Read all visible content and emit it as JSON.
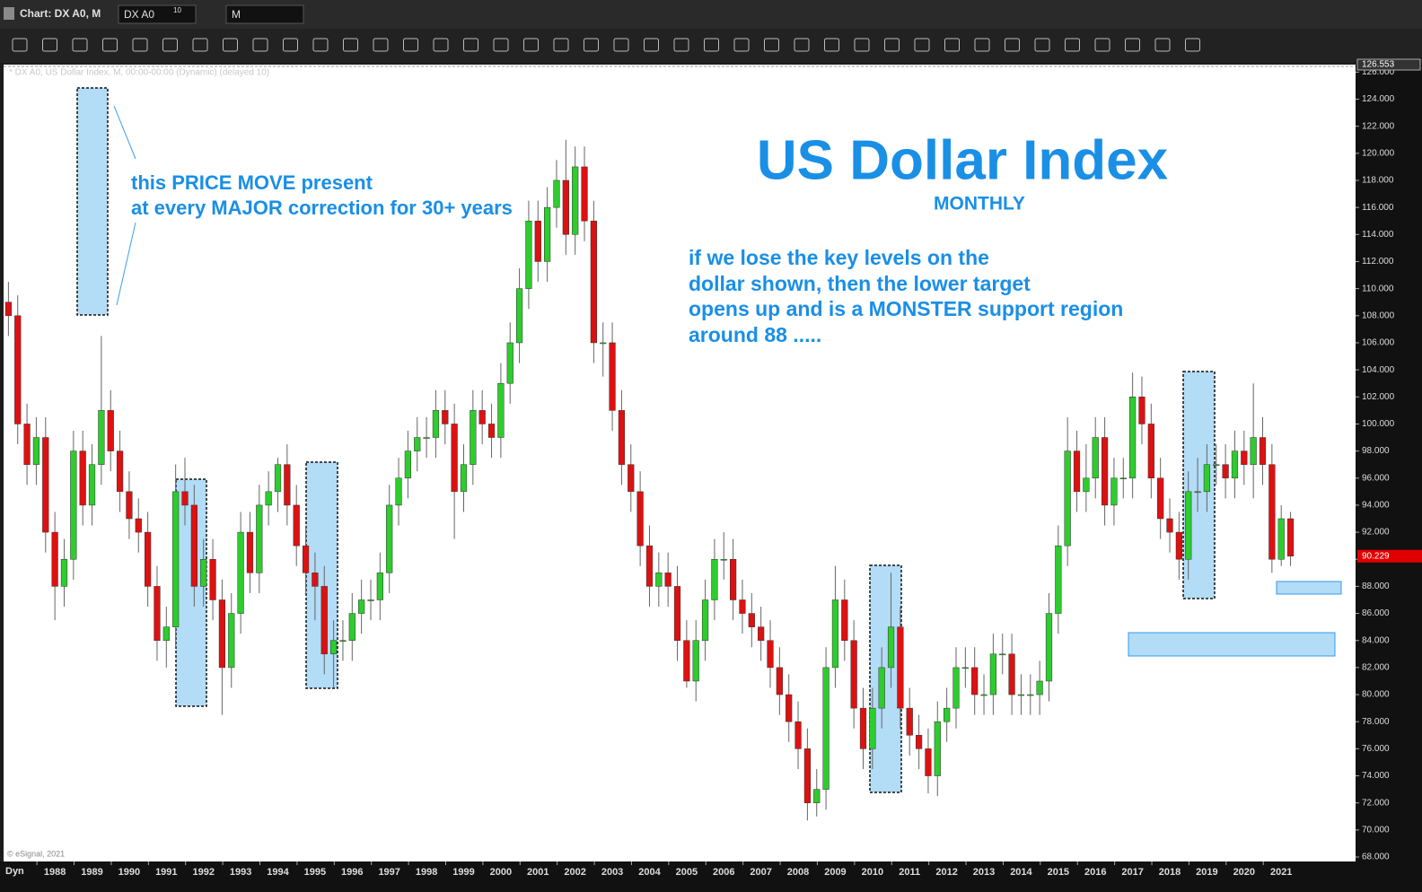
{
  "window": {
    "chart_label": "Chart: DX A0, M",
    "symbol": "DX A0",
    "symbol_sup": "10",
    "interval": "M",
    "corner": "Dyn",
    "legend_line": "* DX A0, US Dollar Index, M, 00:00-00:00 (Dynamic) (delayed 10)",
    "copyright": "© eSignal, 2021"
  },
  "chart_data": {
    "type": "candlestick",
    "title": "US Dollar Index",
    "subtitle": "MONTHLY",
    "annotations": [
      "this PRICE MOVE present",
      "at every MAJOR correction for 30+ years",
      "if we lose the key levels on the",
      "dollar shown, then the lower target",
      "opens up and is a MONSTER support region",
      "around 88 ....."
    ],
    "up_color": "#2ecc2e",
    "down_color": "#dd1111",
    "x": [
      1986.75,
      1987,
      1987.25,
      1987.5,
      1987.75,
      1988,
      1988.25,
      1988.5,
      1988.75,
      1989,
      1989.25,
      1989.5,
      1989.75,
      1990,
      1990.25,
      1990.5,
      1990.75,
      1991,
      1991.25,
      1991.5,
      1991.75,
      1992,
      1992.25,
      1992.5,
      1992.75,
      1993,
      1993.25,
      1993.5,
      1993.75,
      1994,
      1994.25,
      1994.5,
      1994.75,
      1995,
      1995.25,
      1995.5,
      1995.75,
      1996,
      1996.25,
      1996.5,
      1996.75,
      1997,
      1997.25,
      1997.5,
      1997.75,
      1998,
      1998.25,
      1998.5,
      1998.75,
      1999,
      1999.25,
      1999.5,
      1999.75,
      2000,
      2000.25,
      2000.5,
      2000.75,
      2001,
      2001.25,
      2001.5,
      2001.75,
      2002,
      2002.25,
      2002.5,
      2002.75,
      2003,
      2003.25,
      2003.5,
      2003.75,
      2004,
      2004.25,
      2004.5,
      2004.75,
      2005,
      2005.25,
      2005.5,
      2005.75,
      2006,
      2006.25,
      2006.5,
      2006.75,
      2007,
      2007.25,
      2007.5,
      2007.75,
      2008,
      2008.25,
      2008.5,
      2008.75,
      2009,
      2009.25,
      2009.5,
      2009.75,
      2010,
      2010.25,
      2010.5,
      2010.75,
      2011,
      2011.25,
      2011.5,
      2011.75,
      2012,
      2012.25,
      2012.5,
      2012.75,
      2013,
      2013.25,
      2013.5,
      2013.75,
      2014,
      2014.25,
      2014.5,
      2014.75,
      2015,
      2015.25,
      2015.5,
      2015.75,
      2016,
      2016.25,
      2016.5,
      2016.75,
      2017,
      2017.25,
      2017.5,
      2017.75,
      2018,
      2018.25,
      2018.5,
      2018.75,
      2019,
      2019.25,
      2019.5,
      2019.75,
      2020,
      2020.25,
      2020.5,
      2020.75,
      2021,
      2021.25
    ],
    "open": [
      109,
      108,
      100,
      97,
      99,
      92,
      88,
      90,
      98,
      94,
      97,
      101,
      98,
      95,
      93,
      92,
      88,
      84,
      85,
      95,
      94,
      88,
      90,
      87,
      82,
      86,
      92,
      89,
      94,
      95,
      97,
      94,
      91,
      89,
      88,
      83,
      84,
      84,
      86,
      87,
      87,
      89,
      94,
      96,
      98,
      99,
      99,
      101,
      100,
      95,
      97,
      101,
      100,
      99,
      103,
      106,
      110,
      115,
      112,
      116,
      118,
      114,
      119,
      115,
      106,
      106,
      101,
      97,
      95,
      91,
      88,
      89,
      88,
      84,
      81,
      84,
      87,
      90,
      90,
      87,
      86,
      85,
      84,
      82,
      80,
      78,
      76,
      72,
      73,
      82,
      87,
      84,
      79,
      76,
      79,
      82,
      85,
      79,
      77,
      76,
      74,
      78,
      79,
      82,
      82,
      80,
      80,
      83,
      83,
      80,
      80,
      80,
      81,
      86,
      91,
      98,
      95,
      96,
      99,
      94,
      96,
      96,
      102,
      100,
      96,
      93,
      92,
      90,
      95,
      95,
      97,
      97,
      96,
      98,
      97,
      99,
      97,
      90,
      93
    ],
    "high": [
      110.5,
      109.5,
      101.5,
      100.5,
      100.5,
      93.5,
      91.5,
      99.5,
      99.5,
      98.5,
      106.5,
      102.5,
      99.5,
      96.5,
      94.5,
      93.5,
      89.5,
      86.5,
      97,
      97.5,
      95.5,
      91.5,
      91.5,
      88.5,
      87.5,
      93.5,
      93.5,
      95.5,
      96.5,
      97.5,
      98.5,
      95.5,
      92.5,
      90.5,
      89.5,
      85.5,
      85.5,
      87.5,
      88.5,
      88.5,
      90.5,
      95.5,
      97.5,
      99.5,
      100.5,
      100.5,
      102.5,
      102.5,
      101.5,
      98.5,
      102.5,
      102.5,
      101.5,
      104.5,
      107.5,
      111.5,
      116.5,
      116.5,
      117.5,
      119.5,
      121,
      120.5,
      120.5,
      116.5,
      107.5,
      107.5,
      102.5,
      98.5,
      96.5,
      92.5,
      90.5,
      90.5,
      89.5,
      85.5,
      85.5,
      88.5,
      91.5,
      92,
      91.5,
      88.5,
      87.5,
      86.5,
      85.5,
      83.5,
      81.5,
      79.5,
      77.5,
      74.5,
      83.5,
      89.5,
      88.5,
      85.5,
      80.5,
      80.5,
      83.5,
      89,
      86.5,
      80.5,
      78.5,
      77.5,
      79.5,
      80.5,
      83.5,
      83.5,
      83.5,
      81.5,
      84.5,
      84.5,
      84.5,
      81.5,
      81.5,
      82.5,
      87.5,
      92.5,
      100.5,
      99.5,
      98.5,
      100.5,
      100.5,
      97.5,
      97.5,
      103.8,
      103.5,
      101.5,
      97.5,
      94.5,
      93.5,
      96.5,
      97.5,
      98.5,
      98.5,
      98.5,
      99.5,
      99.5,
      103,
      100.5,
      98.5,
      94,
      93.5
    ],
    "low": [
      106.5,
      98.5,
      95.5,
      95.5,
      90.5,
      85.5,
      86.5,
      88.5,
      92.5,
      92.5,
      95.5,
      96.5,
      93.5,
      91.5,
      90.5,
      86.5,
      82.5,
      82,
      83.5,
      92.5,
      86.5,
      86.5,
      85.5,
      78.5,
      80.5,
      84.5,
      87.5,
      87.5,
      92.5,
      93.5,
      92.5,
      89.5,
      87.5,
      85.5,
      81.5,
      80.5,
      82.5,
      82.5,
      84.5,
      85.5,
      85.5,
      87.5,
      92.5,
      94.5,
      96.5,
      97.5,
      97.5,
      98.5,
      91.5,
      93.5,
      95.5,
      98.5,
      97.5,
      97.5,
      101.5,
      104.5,
      108.5,
      110.5,
      110.5,
      114.5,
      112.5,
      112.5,
      113.5,
      104.5,
      103.5,
      99.5,
      95.5,
      93.5,
      89.5,
      86.5,
      86.5,
      86.5,
      82.5,
      80.5,
      79.5,
      82.5,
      85.5,
      88.5,
      85.5,
      84.5,
      83.5,
      82.5,
      80.5,
      78.5,
      76.5,
      74.5,
      70.7,
      71,
      71.5,
      80.5,
      82.5,
      77.5,
      74.5,
      74.5,
      77.5,
      80.5,
      77.5,
      75.5,
      74.5,
      72.7,
      72.5,
      76.5,
      77.5,
      80.5,
      78.5,
      78.5,
      78.5,
      81.5,
      78.5,
      78.5,
      78.5,
      78.5,
      79.5,
      84.5,
      89.5,
      93.5,
      93.5,
      94.5,
      92.5,
      92.5,
      94.5,
      94.5,
      98.5,
      94.5,
      91.5,
      90.5,
      88.5,
      88.5,
      93.5,
      93.5,
      95.5,
      94.5,
      94.5,
      95.5,
      94.5,
      95.5,
      89,
      89.5,
      89.5
    ],
    "close": [
      108,
      100,
      97,
      99,
      92,
      88,
      90,
      98,
      94,
      97,
      101,
      98,
      95,
      93,
      92,
      88,
      84,
      85,
      95,
      94,
      88,
      90,
      87,
      82,
      86,
      92,
      89,
      94,
      95,
      97,
      94,
      91,
      89,
      88,
      83,
      84,
      84,
      86,
      87,
      87,
      89,
      94,
      96,
      98,
      99,
      99,
      101,
      100,
      95,
      97,
      101,
      100,
      99,
      103,
      106,
      110,
      115,
      112,
      116,
      118,
      114,
      119,
      115,
      106,
      106,
      101,
      97,
      95,
      91,
      88,
      89,
      88,
      84,
      81,
      84,
      87,
      90,
      90,
      87,
      86,
      85,
      84,
      82,
      80,
      78,
      76,
      72,
      73,
      82,
      87,
      84,
      79,
      76,
      79,
      82,
      85,
      79,
      77,
      76,
      74,
      78,
      79,
      82,
      82,
      80,
      80,
      83,
      83,
      80,
      80,
      80,
      81,
      86,
      91,
      98,
      95,
      96,
      99,
      94,
      96,
      96,
      102,
      100,
      96,
      93,
      92,
      90,
      95,
      95,
      97,
      97,
      96,
      98,
      97,
      99,
      97,
      90,
      93,
      90.229
    ],
    "xlim": [
      1986.62,
      2023.0
    ],
    "xticks": [
      1988,
      1989,
      1990,
      1991,
      1992,
      1993,
      1994,
      1995,
      1996,
      1997,
      1998,
      1999,
      2000,
      2001,
      2002,
      2003,
      2004,
      2005,
      2006,
      2007,
      2008,
      2009,
      2010,
      2011,
      2012,
      2013,
      2014,
      2015,
      2016,
      2017,
      2018,
      2019,
      2020,
      2021
    ],
    "ylim": [
      67.67,
      126.553
    ],
    "yticks": [
      {
        "value": 68,
        "label": "68.000"
      },
      {
        "value": 70,
        "label": "70.000"
      },
      {
        "value": 72,
        "label": "72.000"
      },
      {
        "value": 74,
        "label": "74.000"
      },
      {
        "value": 76,
        "label": "76.000"
      },
      {
        "value": 78,
        "label": "78.000"
      },
      {
        "value": 80,
        "label": "80.000"
      },
      {
        "value": 82,
        "label": "82.000"
      },
      {
        "value": 84,
        "label": "84.000"
      },
      {
        "value": 86,
        "label": "86.000"
      },
      {
        "value": 88,
        "label": "88.000"
      },
      {
        "value": 90,
        "label": "90.000"
      },
      {
        "value": 92,
        "label": "92.000"
      },
      {
        "value": 94,
        "label": "94.000"
      },
      {
        "value": 96,
        "label": "96.000"
      },
      {
        "value": 98,
        "label": "98.000"
      },
      {
        "value": 100,
        "label": "100.000"
      },
      {
        "value": 102,
        "label": "102.000"
      },
      {
        "value": 104,
        "label": "104.000"
      },
      {
        "value": 106,
        "label": "106.000"
      },
      {
        "value": 108,
        "label": "108.000"
      },
      {
        "value": 110,
        "label": "110.000"
      },
      {
        "value": 112,
        "label": "112.000"
      },
      {
        "value": 114,
        "label": "114.000"
      },
      {
        "value": 116,
        "label": "116.000"
      },
      {
        "value": 118,
        "label": "118.000"
      },
      {
        "value": 120,
        "label": "120.000"
      },
      {
        "value": 122,
        "label": "122.000"
      },
      {
        "value": 124,
        "label": "124.000"
      },
      {
        "value": 126,
        "label": "126.000"
      }
    ],
    "grid": false
  }
}
